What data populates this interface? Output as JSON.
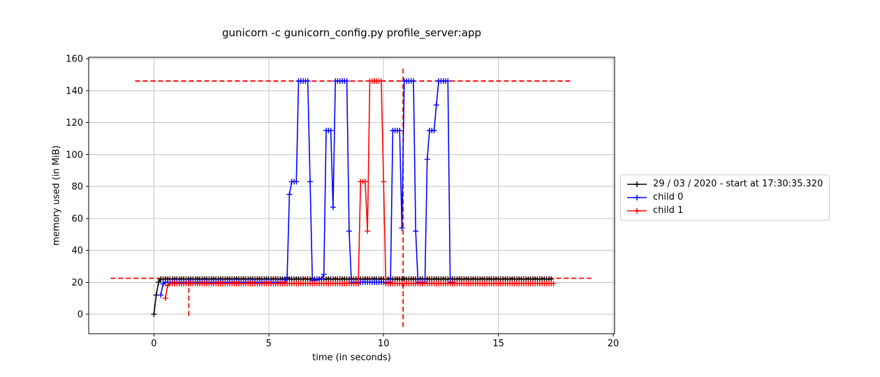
{
  "title": "gunicorn -c gunicorn_config.py profile_server:app",
  "axes": {
    "xlabel": "time (in seconds)",
    "ylabel": "memory used (in MiB)"
  },
  "legend": {
    "position": "right-outside",
    "entries": [
      {
        "label": "29 / 03 / 2020 - start at 17:30:35.320",
        "color": "#000000"
      },
      {
        "label": "child 0",
        "color": "#0000ff"
      },
      {
        "label": "child 1",
        "color": "#ff0000"
      }
    ]
  },
  "colors": {
    "background": "#ffffff",
    "grid": "#c6c6c6",
    "axes": "#000000",
    "annotation": "#ff0000"
  },
  "chart_data": {
    "type": "line",
    "title": "gunicorn -c gunicorn_config.py profile_server:app",
    "xlabel": "time (in seconds)",
    "ylabel": "memory used (in MiB)",
    "xlim": [
      -2.84,
      20.06
    ],
    "ylim": [
      -12.2,
      160.9
    ],
    "x_ticks": [
      0,
      5,
      10,
      15,
      20
    ],
    "y_ticks": [
      0,
      20,
      40,
      60,
      80,
      100,
      120,
      140,
      160
    ],
    "grid": true,
    "marker": "+",
    "sample_interval_s": 0.1,
    "series": [
      {
        "name": "29 / 03 / 2020 - start at 17:30:35.320",
        "color": "#000000",
        "points": [
          [
            0,
            0
          ],
          [
            0.1,
            12
          ],
          [
            0.2,
            20
          ],
          [
            0.3,
            22
          ],
          [
            17.3,
            22
          ]
        ]
      },
      {
        "name": "child 0",
        "color": "#0000ff",
        "points": [
          [
            0.3,
            12
          ],
          [
            0.4,
            19
          ],
          [
            0.5,
            20
          ],
          [
            5.7,
            20
          ],
          [
            5.8,
            23
          ],
          [
            5.9,
            75
          ],
          [
            6.0,
            83
          ],
          [
            6.2,
            83
          ],
          [
            6.3,
            146
          ],
          [
            6.7,
            146
          ],
          [
            6.8,
            83
          ],
          [
            6.9,
            21
          ],
          [
            7.3,
            22
          ],
          [
            7.4,
            25
          ],
          [
            7.5,
            115
          ],
          [
            7.7,
            115
          ],
          [
            7.8,
            67
          ],
          [
            7.9,
            146
          ],
          [
            8.4,
            146
          ],
          [
            8.5,
            52
          ],
          [
            8.6,
            20
          ],
          [
            10.3,
            20
          ],
          [
            10.4,
            115
          ],
          [
            10.7,
            115
          ],
          [
            10.8,
            54
          ],
          [
            10.9,
            146
          ],
          [
            11.3,
            146
          ],
          [
            11.4,
            52
          ],
          [
            11.5,
            20
          ],
          [
            11.8,
            20
          ],
          [
            11.9,
            97
          ],
          [
            12.0,
            115
          ],
          [
            12.2,
            115
          ],
          [
            12.3,
            131
          ],
          [
            12.4,
            146
          ],
          [
            12.8,
            146
          ],
          [
            12.9,
            20
          ],
          [
            13.0,
            20
          ]
        ]
      },
      {
        "name": "child 1",
        "color": "#ff0000",
        "points": [
          [
            0.5,
            10
          ],
          [
            0.6,
            18
          ],
          [
            0.7,
            19.2
          ],
          [
            8.9,
            19.2
          ],
          [
            9.0,
            83
          ],
          [
            9.2,
            83
          ],
          [
            9.3,
            52
          ],
          [
            9.4,
            146
          ],
          [
            9.9,
            146
          ],
          [
            10.0,
            83
          ],
          [
            10.1,
            19.2
          ],
          [
            17.4,
            19.2
          ]
        ]
      }
    ],
    "annotations": [
      {
        "type": "hline",
        "y": 146,
        "from": -0.82,
        "to": 18.14,
        "color": "#ff0000",
        "style": "dashed"
      },
      {
        "type": "hline",
        "y": 22.5,
        "from": -1.89,
        "to": 19.15,
        "color": "#ff0000",
        "style": "dashed"
      },
      {
        "type": "vline",
        "x": 1.52,
        "from": -1,
        "to": 22,
        "color": "#ff0000",
        "style": "dashed"
      },
      {
        "type": "vline",
        "x": 10.85,
        "from": -8,
        "to": 154,
        "color": "#ff0000",
        "style": "dashed"
      }
    ]
  }
}
